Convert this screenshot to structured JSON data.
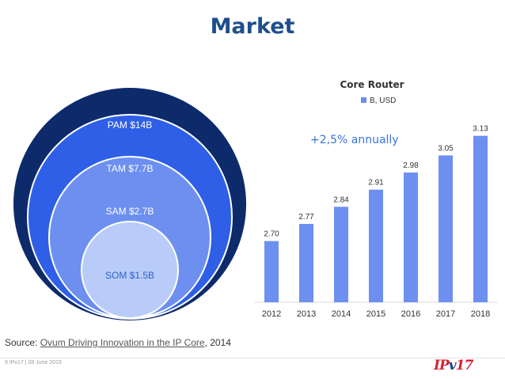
{
  "slide": {
    "title": "Market",
    "circles": [
      {
        "label": "PAM $14B",
        "color": "#0d2a6b"
      },
      {
        "label": "TAM $7.7B",
        "color": "#2e5fe6"
      },
      {
        "label": "SAM $2.7B",
        "color": "#6d8ff0"
      },
      {
        "label": "SOM $1.5B",
        "color": "#b9ccf9"
      }
    ],
    "annotation": "+2,5% annually",
    "source_prefix": "Source: ",
    "source_link": "Ovum Driving Innovation in the IP Core",
    "source_suffix": ", 2014",
    "footer": "9   IPv17 | 08 June 2015",
    "logo_left": "IP",
    "logo_mid": "v",
    "logo_right": "17"
  },
  "chart_data": {
    "type": "bar",
    "title": "Core Router",
    "series": [
      {
        "name": "B, USD",
        "values": [
          2.7,
          2.77,
          2.84,
          2.91,
          2.98,
          3.05,
          3.13
        ],
        "color": "#6d8ff0"
      }
    ],
    "categories": [
      "2012",
      "2013",
      "2014",
      "2015",
      "2016",
      "2017",
      "2018"
    ],
    "data_labels": [
      "2.70",
      "2.77",
      "2.84",
      "2.91",
      "2.98",
      "3.05",
      "3.13"
    ],
    "ylim": [
      2.45,
      3.2
    ],
    "legend_position": "top"
  }
}
